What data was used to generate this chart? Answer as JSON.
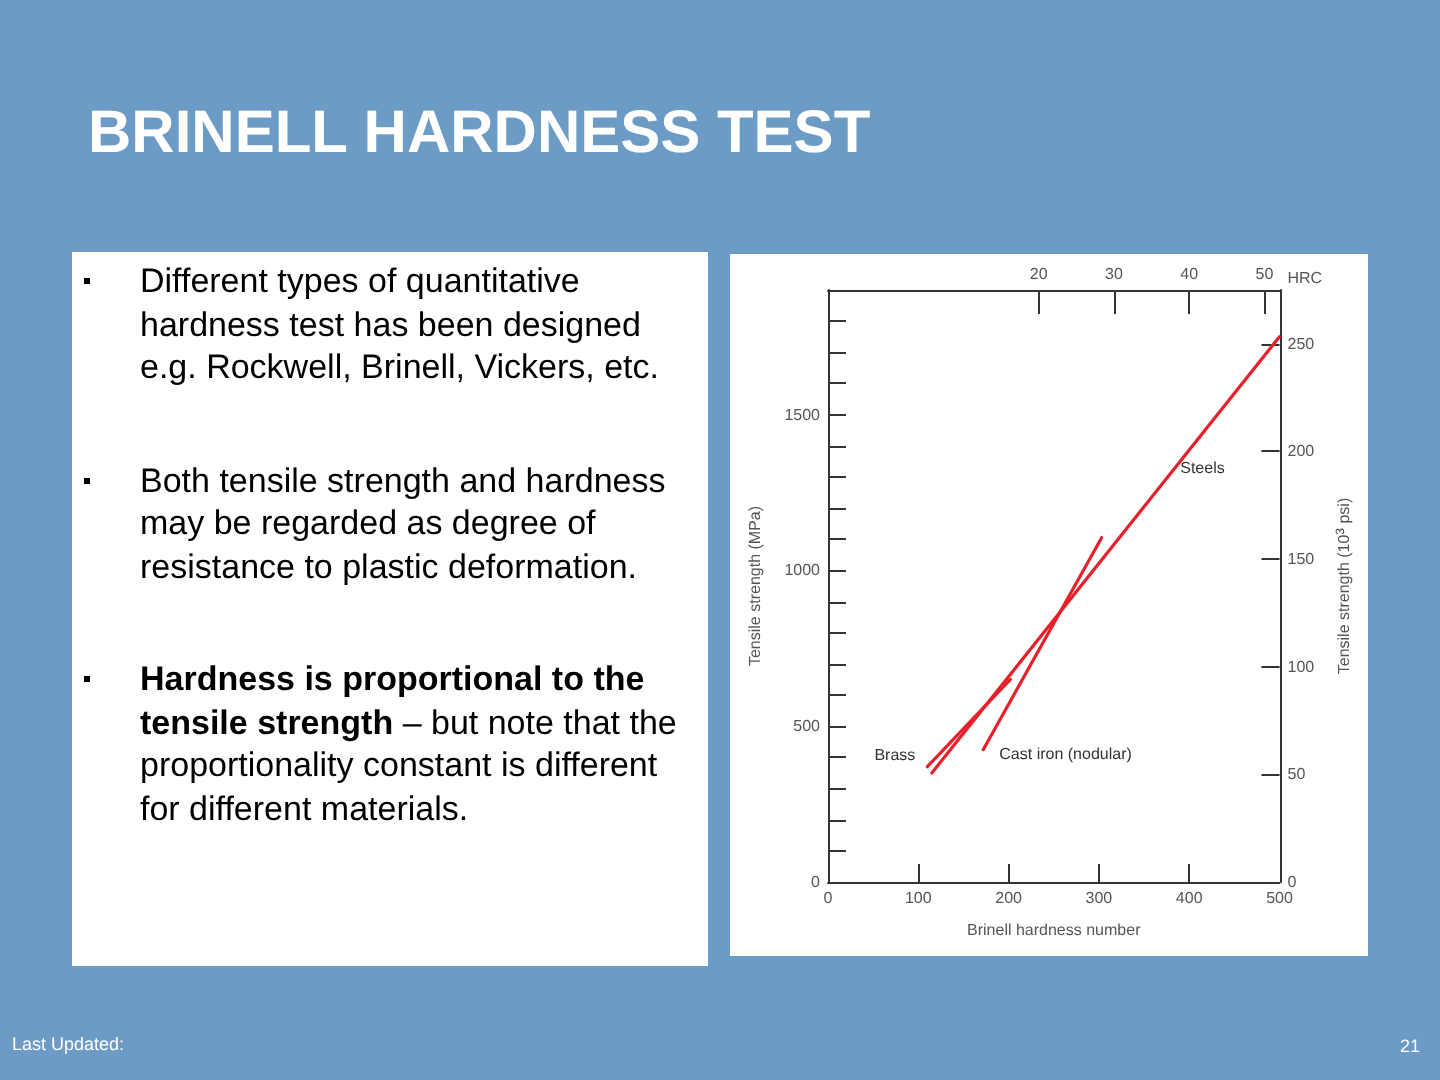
{
  "chart_data": {
    "type": "line",
    "title": "BRINELL HARDNESS TEST",
    "xlabel": "Brinell hardness number",
    "ylabel": "Tensile strength (MPa)",
    "y2label": "Tensile strength (10$^{3}$ psi)",
    "x2label": "HRC",
    "annotations": [
      "Different types of quantitative hardness test has been designed e.g. Rockwell, Brinell, Vickers, etc.",
      "Both tensile strength and hardness may be regarded as degree of resistance to plastic deformation.",
      "Hardness is proportional to the tensile strength",
      " – but note that the proportionality constant is different for different materials.",
      "Last Updated:",
      "21"
    ],
    "series": [
      {
        "name": "Steels",
        "color": "#e8202a",
        "x": [
          115,
          500
        ],
        "values": [
          350,
          1750
        ]
      },
      {
        "name": "Brass",
        "color": "#e8202a",
        "x": [
          110,
          202
        ],
        "values": [
          370,
          650
        ]
      },
      {
        "name": "Cast iron (nodular)",
        "color": "#e8202a",
        "x": [
          172,
          303
        ],
        "values": [
          425,
          1105
        ]
      }
    ],
    "marker": "none",
    "line_style": "solid",
    "xlim": [
      0,
      500
    ],
    "xticks": [
      0,
      100,
      200,
      300,
      400,
      500
    ],
    "x2lim": [
      -8,
      52
    ],
    "x2ticks": [
      20,
      30,
      40,
      50
    ],
    "ylim": [
      0,
      1900
    ],
    "yticks": [
      0,
      {
        "value": 100,
        "label": null
      },
      {
        "value": 200,
        "label": null
      },
      {
        "value": 300,
        "label": null
      },
      {
        "value": 400,
        "label": null
      },
      500,
      {
        "value": 600,
        "label": null
      },
      {
        "value": 700,
        "label": null
      },
      {
        "value": 800,
        "label": null
      },
      {
        "value": 900,
        "label": null
      },
      1000,
      {
        "value": 1100,
        "label": null
      },
      {
        "value": 1200,
        "label": null
      },
      {
        "value": 1300,
        "label": null
      },
      {
        "value": 1400,
        "label": null
      },
      1500,
      {
        "value": 1600,
        "label": null
      },
      {
        "value": 1700,
        "label": null
      },
      {
        "value": 1800,
        "label": null
      }
    ],
    "y2lim": [
      0,
      275
    ],
    "y2ticks": [
      0,
      50,
      100,
      150,
      200,
      250
    ]
  }
}
